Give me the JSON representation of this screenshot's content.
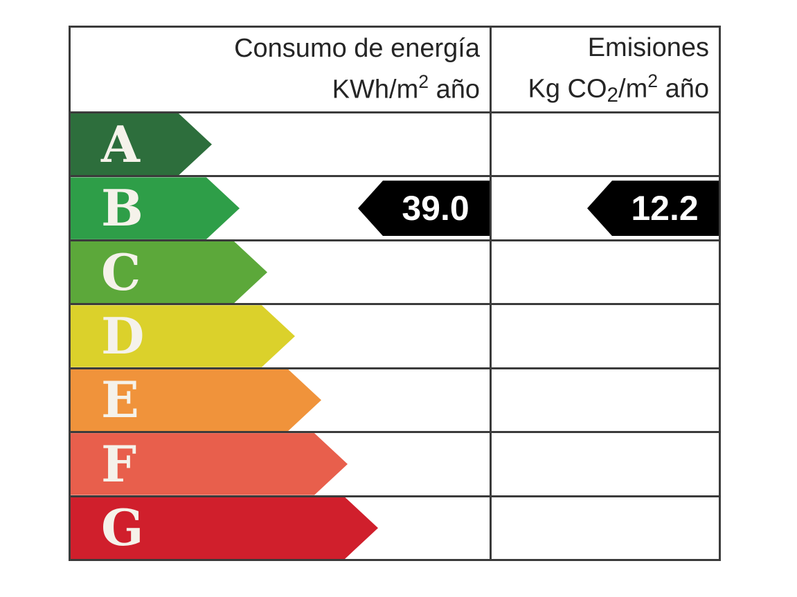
{
  "colors": {
    "border": "#3b3b3b",
    "indicator_bg": "#000000",
    "indicator_text": "#ffffff",
    "letter_text": "#f5f2ea",
    "header_text": "#252525",
    "background": "#ffffff"
  },
  "header": {
    "consumption_title": "Consumo de energía",
    "consumption_unit_prefix": "KWh/m",
    "consumption_unit_exp": "2",
    "consumption_unit_suffix": " año",
    "emissions_title": "Emisiones",
    "emissions_unit_prefix": "Kg CO",
    "emissions_unit_sub": "2",
    "emissions_unit_mid": "/m",
    "emissions_unit_exp": "2",
    "emissions_unit_suffix": " año"
  },
  "ratings": [
    {
      "letter": "A",
      "color": "#2d6e3c"
    },
    {
      "letter": "B",
      "color": "#2e9e48"
    },
    {
      "letter": "C",
      "color": "#5ca83a"
    },
    {
      "letter": "D",
      "color": "#dbd12b"
    },
    {
      "letter": "E",
      "color": "#f0933b"
    },
    {
      "letter": "F",
      "color": "#e85f4c"
    },
    {
      "letter": "G",
      "color": "#d01f2c"
    }
  ],
  "values": {
    "consumption": "39.0",
    "emissions": "12.2"
  },
  "chart_data": {
    "type": "bar",
    "orientation": "horizontal",
    "title": "",
    "categories": [
      "A",
      "B",
      "C",
      "D",
      "E",
      "F",
      "G"
    ],
    "bar_colors": [
      "#2d6e3c",
      "#2e9e48",
      "#5ca83a",
      "#dbd12b",
      "#f0933b",
      "#e85f4c",
      "#d01f2c"
    ],
    "bar_length_fraction_of_column": [
      0.34,
      0.4,
      0.47,
      0.53,
      0.6,
      0.66,
      0.73
    ],
    "columns": [
      {
        "header": "Consumo de energía KWh/m2 año",
        "indicated_value": 39.0,
        "indicated_rating": "B"
      },
      {
        "header": "Emisiones Kg CO2/m2 año",
        "indicated_value": 12.2,
        "indicated_rating": "B"
      }
    ],
    "legend_position": "none",
    "grid": false
  }
}
